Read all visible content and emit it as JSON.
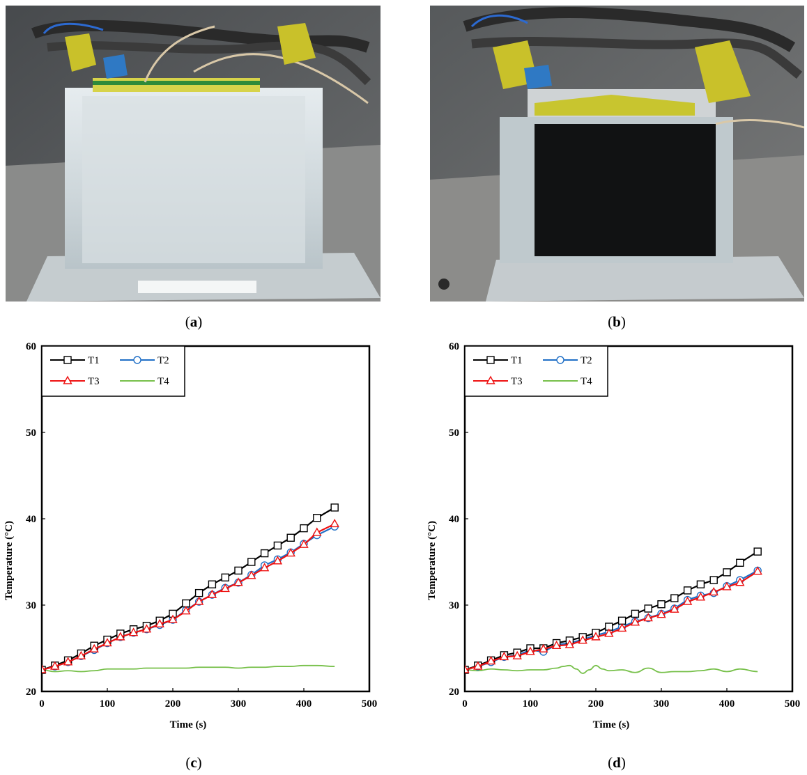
{
  "captions": {
    "a": "a",
    "b": "b",
    "c": "c",
    "d": "d"
  },
  "photos": {
    "a": {
      "description_icon": "battery-in-clear-ice-block-photo"
    },
    "b": {
      "description_icon": "battery-in-dark-composite-block-photo"
    }
  },
  "colors": {
    "T1": "#000000",
    "T2": "#1f6fc6",
    "T3": "#ee1111",
    "T4": "#77c04a"
  },
  "chart_data": [
    {
      "type": "line",
      "panel": "c",
      "title": "",
      "xlabel": "Time (s)",
      "ylabel": "Temperature (°C)",
      "xlim": [
        0,
        500
      ],
      "ylim": [
        20,
        60
      ],
      "xticks": [
        0,
        100,
        200,
        300,
        400,
        500
      ],
      "yticks": [
        20,
        30,
        40,
        50,
        60
      ],
      "legend_position": "top-left",
      "legend": [
        "T1",
        "T2",
        "T3",
        "T4"
      ],
      "series": [
        {
          "name": "T1",
          "marker": "square",
          "x": [
            0,
            20,
            40,
            60,
            80,
            100,
            120,
            140,
            160,
            180,
            200,
            220,
            240,
            260,
            280,
            300,
            320,
            340,
            360,
            380,
            400,
            420,
            447
          ],
          "y": [
            22.5,
            23.0,
            23.6,
            24.4,
            25.3,
            26.0,
            26.7,
            27.2,
            27.6,
            28.2,
            29.0,
            30.2,
            31.4,
            32.4,
            33.2,
            34.0,
            35.0,
            36.0,
            36.9,
            37.8,
            38.9,
            40.1,
            41.3
          ]
        },
        {
          "name": "T2",
          "marker": "circle",
          "x": [
            0,
            20,
            40,
            60,
            80,
            100,
            120,
            140,
            160,
            180,
            200,
            220,
            240,
            260,
            280,
            300,
            320,
            340,
            360,
            380,
            400,
            420,
            447
          ],
          "y": [
            22.5,
            22.9,
            23.4,
            24.1,
            24.8,
            25.6,
            26.3,
            26.8,
            27.2,
            27.7,
            28.3,
            29.4,
            30.4,
            31.2,
            32.0,
            32.6,
            33.5,
            34.6,
            35.3,
            36.1,
            37.1,
            38.1,
            39.1
          ]
        },
        {
          "name": "T3",
          "marker": "triangle",
          "x": [
            0,
            20,
            40,
            60,
            80,
            100,
            120,
            140,
            160,
            180,
            200,
            220,
            240,
            260,
            280,
            300,
            320,
            340,
            360,
            380,
            400,
            420,
            447
          ],
          "y": [
            22.5,
            22.9,
            23.4,
            24.1,
            24.9,
            25.6,
            26.3,
            26.8,
            27.2,
            27.8,
            28.3,
            29.3,
            30.4,
            31.2,
            31.9,
            32.6,
            33.4,
            34.3,
            35.1,
            36.0,
            37.0,
            38.4,
            39.4
          ]
        },
        {
          "name": "T4",
          "marker": "none",
          "x": [
            0,
            20,
            40,
            60,
            80,
            100,
            120,
            140,
            160,
            180,
            200,
            220,
            240,
            260,
            280,
            300,
            320,
            340,
            360,
            380,
            400,
            420,
            447
          ],
          "y": [
            22.5,
            22.3,
            22.4,
            22.3,
            22.4,
            22.6,
            22.6,
            22.6,
            22.7,
            22.7,
            22.7,
            22.7,
            22.8,
            22.8,
            22.8,
            22.7,
            22.8,
            22.8,
            22.9,
            22.9,
            23.0,
            23.0,
            22.9
          ]
        }
      ]
    },
    {
      "type": "line",
      "panel": "d",
      "title": "",
      "xlabel": "Time (s)",
      "ylabel": "Temperature (°C)",
      "xlim": [
        0,
        500
      ],
      "ylim": [
        20,
        60
      ],
      "xticks": [
        0,
        100,
        200,
        300,
        400,
        500
      ],
      "yticks": [
        20,
        30,
        40,
        50,
        60
      ],
      "legend_position": "top-left",
      "legend": [
        "T1",
        "T2",
        "T3",
        "T4"
      ],
      "series": [
        {
          "name": "T1",
          "marker": "square",
          "x": [
            0,
            20,
            40,
            60,
            80,
            100,
            120,
            140,
            160,
            180,
            200,
            220,
            240,
            260,
            280,
            300,
            320,
            340,
            360,
            380,
            400,
            420,
            447
          ],
          "y": [
            22.5,
            23.0,
            23.6,
            24.2,
            24.5,
            25.0,
            25.0,
            25.6,
            25.9,
            26.3,
            26.8,
            27.5,
            28.2,
            29.0,
            29.6,
            30.1,
            30.8,
            31.7,
            32.4,
            32.9,
            33.8,
            34.9,
            36.2
          ]
        },
        {
          "name": "T2",
          "marker": "circle",
          "x": [
            0,
            20,
            40,
            60,
            80,
            100,
            120,
            140,
            160,
            180,
            200,
            220,
            240,
            260,
            280,
            300,
            320,
            340,
            360,
            380,
            400,
            420,
            447
          ],
          "y": [
            22.5,
            22.9,
            23.4,
            24.0,
            24.2,
            24.8,
            24.6,
            25.4,
            25.6,
            26.0,
            26.5,
            26.9,
            27.5,
            28.1,
            28.5,
            29.0,
            29.6,
            30.6,
            31.1,
            31.4,
            32.2,
            32.9,
            34.0
          ]
        },
        {
          "name": "T3",
          "marker": "triangle",
          "x": [
            0,
            20,
            40,
            60,
            80,
            100,
            120,
            140,
            160,
            180,
            200,
            220,
            240,
            260,
            280,
            300,
            320,
            340,
            360,
            380,
            400,
            420,
            447
          ],
          "y": [
            22.5,
            22.9,
            23.5,
            24.0,
            24.1,
            24.6,
            24.9,
            25.3,
            25.4,
            25.9,
            26.3,
            26.7,
            27.3,
            28.0,
            28.5,
            28.9,
            29.5,
            30.4,
            30.9,
            31.5,
            32.1,
            32.6,
            33.9
          ]
        },
        {
          "name": "T4",
          "marker": "none",
          "x": [
            0,
            20,
            40,
            60,
            80,
            100,
            120,
            140,
            150,
            160,
            170,
            180,
            190,
            200,
            210,
            220,
            240,
            260,
            280,
            300,
            320,
            340,
            360,
            380,
            400,
            420,
            447
          ],
          "y": [
            22.5,
            22.4,
            22.6,
            22.5,
            22.4,
            22.5,
            22.5,
            22.7,
            22.9,
            23.0,
            22.6,
            22.1,
            22.5,
            23.0,
            22.6,
            22.4,
            22.5,
            22.2,
            22.7,
            22.2,
            22.3,
            22.3,
            22.4,
            22.6,
            22.3,
            22.6,
            22.3
          ]
        }
      ]
    }
  ]
}
